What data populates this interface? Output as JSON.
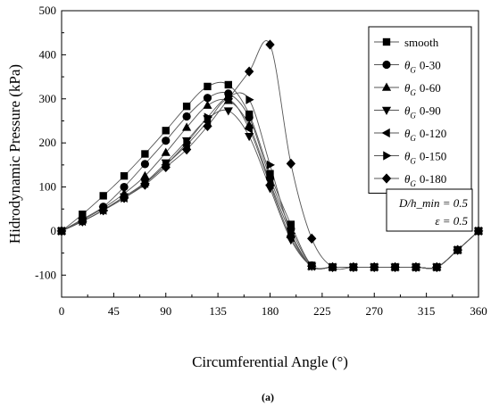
{
  "chart_data": {
    "type": "line",
    "xlabel": "Circumferential Angle (°)",
    "ylabel": "Hidrodynamic Pressure (kPa)",
    "xlim": [
      0,
      360
    ],
    "ylim": [
      -150,
      500
    ],
    "xticks": [
      0,
      45,
      90,
      135,
      180,
      225,
      270,
      315,
      360
    ],
    "yticks": [
      -100,
      0,
      100,
      200,
      300,
      400,
      500
    ],
    "grid": false,
    "legend_position": "right",
    "caption": "(a)",
    "annotation": {
      "line1": "D/h_min = 0.5",
      "line2": "ε = 0.5"
    },
    "series": [
      {
        "name": "smooth",
        "symbol_prefix": "",
        "marker": "square",
        "x": [
          0,
          18,
          36,
          54,
          72,
          90,
          108,
          126,
          144,
          162,
          180,
          198,
          216,
          234,
          252,
          270,
          288,
          306,
          324,
          342,
          360
        ],
        "y": [
          0,
          38,
          80,
          125,
          175,
          228,
          283,
          328,
          332,
          265,
          130,
          15,
          -78,
          -82,
          -82,
          -82,
          -82,
          -82,
          -82,
          -43,
          0
        ]
      },
      {
        "name": "0-30",
        "symbol_prefix": "θ",
        "symbol_sub": "G",
        "marker": "circle",
        "x": [
          0,
          18,
          36,
          54,
          72,
          90,
          108,
          126,
          144,
          162,
          180,
          198,
          216,
          234,
          252,
          270,
          288,
          306,
          324,
          342,
          360
        ],
        "y": [
          0,
          27,
          55,
          100,
          152,
          205,
          260,
          302,
          312,
          258,
          120,
          5,
          -78,
          -82,
          -82,
          -82,
          -82,
          -82,
          -82,
          -43,
          0
        ]
      },
      {
        "name": "0-60",
        "symbol_prefix": "θ",
        "symbol_sub": "G",
        "marker": "triangle-up",
        "x": [
          0,
          18,
          36,
          54,
          72,
          90,
          108,
          126,
          144,
          162,
          180,
          198,
          216,
          234,
          252,
          270,
          288,
          306,
          324,
          342,
          360
        ],
        "y": [
          0,
          25,
          52,
          85,
          125,
          178,
          235,
          285,
          296,
          240,
          110,
          -5,
          -80,
          -82,
          -82,
          -82,
          -82,
          -82,
          -82,
          -43,
          0
        ]
      },
      {
        "name": "0-90",
        "symbol_prefix": "θ",
        "symbol_sub": "G",
        "marker": "triangle-down",
        "x": [
          0,
          18,
          36,
          54,
          72,
          90,
          108,
          126,
          144,
          162,
          180,
          198,
          216,
          234,
          252,
          270,
          288,
          306,
          324,
          342,
          360
        ],
        "y": [
          0,
          22,
          48,
          78,
          110,
          155,
          205,
          255,
          273,
          215,
          97,
          -20,
          -80,
          -82,
          -82,
          -82,
          -82,
          -82,
          -82,
          -43,
          0
        ]
      },
      {
        "name": "0-120",
        "symbol_prefix": "θ",
        "symbol_sub": "G",
        "marker": "triangle-left",
        "x": [
          0,
          18,
          36,
          54,
          72,
          90,
          108,
          126,
          144,
          162,
          180,
          198,
          216,
          234,
          252,
          270,
          288,
          306,
          324,
          342,
          360
        ],
        "y": [
          0,
          22,
          47,
          75,
          108,
          150,
          195,
          248,
          298,
          232,
          105,
          -15,
          -80,
          -82,
          -82,
          -82,
          -82,
          -82,
          -82,
          -43,
          0
        ]
      },
      {
        "name": "0-150",
        "symbol_prefix": "θ",
        "symbol_sub": "G",
        "marker": "triangle-right",
        "x": [
          0,
          18,
          36,
          54,
          72,
          90,
          108,
          126,
          144,
          162,
          180,
          198,
          216,
          234,
          252,
          270,
          288,
          306,
          324,
          342,
          360
        ],
        "y": [
          0,
          22,
          47,
          75,
          108,
          150,
          200,
          258,
          305,
          298,
          150,
          -5,
          -80,
          -82,
          -82,
          -82,
          -82,
          -82,
          -82,
          -43,
          0
        ]
      },
      {
        "name": "0-180",
        "symbol_prefix": "θ",
        "symbol_sub": "G",
        "marker": "diamond",
        "x": [
          0,
          18,
          36,
          54,
          72,
          90,
          108,
          126,
          144,
          162,
          180,
          198,
          216,
          234,
          252,
          270,
          288,
          306,
          324,
          342,
          360
        ],
        "y": [
          0,
          22,
          47,
          75,
          105,
          145,
          185,
          238,
          300,
          362,
          423,
          153,
          -17,
          -82,
          -82,
          -82,
          -82,
          -82,
          -82,
          -43,
          0
        ]
      }
    ]
  }
}
